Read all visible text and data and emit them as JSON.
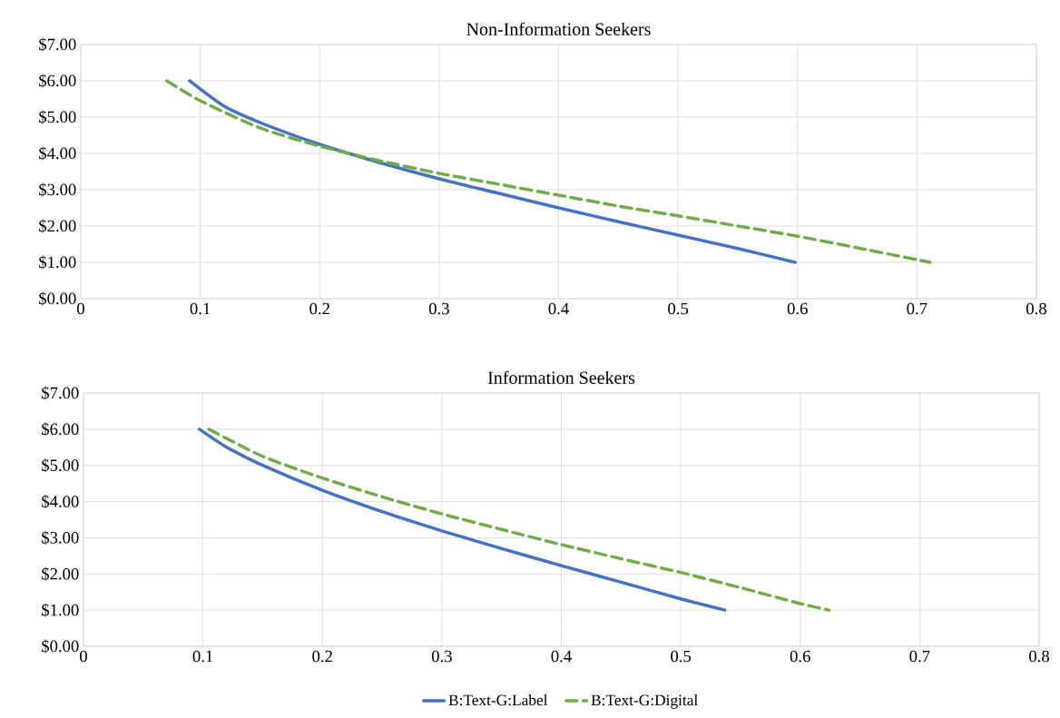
{
  "chart_data": [
    {
      "type": "line",
      "title": "Non-Information Seekers",
      "xlim": [
        0,
        0.8
      ],
      "xticks": [
        0,
        0.1,
        0.2,
        0.3,
        0.4,
        0.5,
        0.6,
        0.7,
        0.8
      ],
      "ylim": [
        0,
        7
      ],
      "yticks": [
        {
          "value": 0,
          "label": "$0.00"
        },
        {
          "value": 1,
          "label": "$1.00"
        },
        {
          "value": 2,
          "label": "$2.00"
        },
        {
          "value": 3,
          "label": "$3.00"
        },
        {
          "value": 4,
          "label": "$4.00"
        },
        {
          "value": 5,
          "label": "$5.00"
        },
        {
          "value": 6,
          "label": "$6.00"
        },
        {
          "value": 7,
          "label": "$7.00"
        }
      ],
      "grid": true,
      "marker": "none",
      "series": [
        {
          "color": "#4472c4",
          "line_style": "solid",
          "x": [
            0.091,
            0.12,
            0.15,
            0.2,
            0.25,
            0.3,
            0.35,
            0.4,
            0.45,
            0.5,
            0.55,
            0.598
          ],
          "values": [
            6,
            5.3,
            4.85,
            4.25,
            3.75,
            3.3,
            2.9,
            2.5,
            2.12,
            1.75,
            1.38,
            1
          ]
        },
        {
          "color": "#70ad47",
          "line_style": "dashed",
          "x": [
            0.072,
            0.1,
            0.15,
            0.2,
            0.25,
            0.3,
            0.35,
            0.4,
            0.45,
            0.5,
            0.55,
            0.6,
            0.65,
            0.711
          ],
          "values": [
            6,
            5.45,
            4.7,
            4.2,
            3.8,
            3.45,
            3.15,
            2.85,
            2.55,
            2.28,
            2,
            1.72,
            1.4,
            1
          ]
        }
      ]
    },
    {
      "type": "line",
      "title": "Information Seekers",
      "xlim": [
        0,
        0.8
      ],
      "xticks": [
        0,
        0.1,
        0.2,
        0.3,
        0.4,
        0.5,
        0.6,
        0.7,
        0.8
      ],
      "ylim": [
        0,
        7
      ],
      "yticks": [
        {
          "value": 0,
          "label": "$0.00"
        },
        {
          "value": 1,
          "label": "$1.00"
        },
        {
          "value": 2,
          "label": "$2.00"
        },
        {
          "value": 3,
          "label": "$3.00"
        },
        {
          "value": 4,
          "label": "$4.00"
        },
        {
          "value": 5,
          "label": "$5.00"
        },
        {
          "value": 6,
          "label": "$6.00"
        },
        {
          "value": 7,
          "label": "$7.00"
        }
      ],
      "grid": true,
      "marker": "none",
      "legend": "bottom",
      "series": [
        {
          "name": "B:Text-G:Label",
          "color": "#4472c4",
          "line_style": "solid",
          "x": [
            0.097,
            0.12,
            0.15,
            0.2,
            0.25,
            0.3,
            0.35,
            0.4,
            0.45,
            0.5,
            0.537
          ],
          "values": [
            6,
            5.5,
            5.0,
            4.31,
            3.72,
            3.19,
            2.7,
            2.23,
            1.77,
            1.31,
            1
          ]
        },
        {
          "name": "B:Text-G:Digital",
          "color": "#70ad47",
          "line_style": "dashed",
          "x": [
            0.105,
            0.15,
            0.2,
            0.25,
            0.3,
            0.35,
            0.4,
            0.45,
            0.5,
            0.55,
            0.6,
            0.624
          ],
          "values": [
            6,
            5.25,
            4.65,
            4.13,
            3.66,
            3.23,
            2.81,
            2.42,
            2.04,
            1.62,
            1.18,
            1
          ]
        }
      ]
    }
  ]
}
